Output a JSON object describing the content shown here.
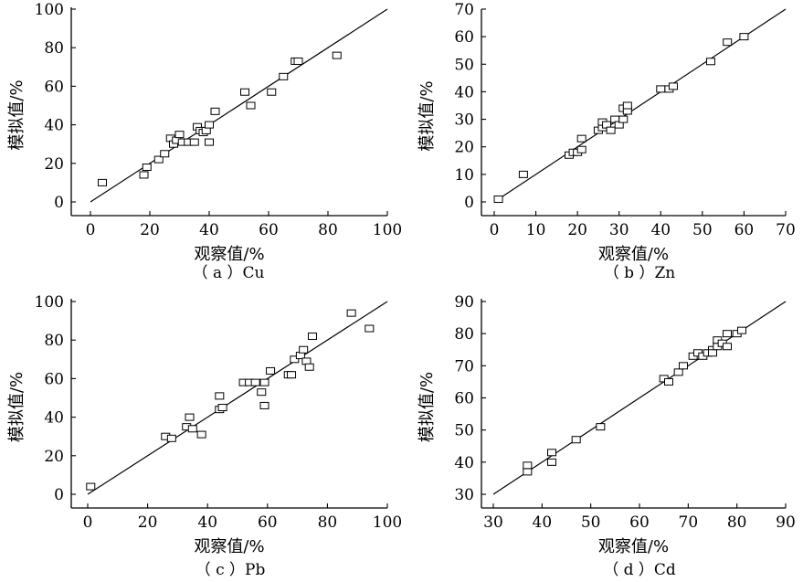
{
  "chart_data": [
    {
      "type": "scatter",
      "caption": "（ a ）Cu",
      "xlabel": "观察值/%",
      "ylabel": "模拟值/%",
      "xlim": [
        0,
        100
      ],
      "ylim": [
        0,
        100
      ],
      "xticks": [
        "0",
        "20",
        "40",
        "60",
        "80",
        "100"
      ],
      "yticks": [
        "0",
        "20",
        "40",
        "60",
        "80",
        "100"
      ],
      "fit_line": [
        [
          0,
          0
        ],
        [
          100,
          100
        ]
      ],
      "points": [
        [
          4,
          10
        ],
        [
          18,
          14
        ],
        [
          19,
          18
        ],
        [
          23,
          22
        ],
        [
          25,
          25
        ],
        [
          27,
          33
        ],
        [
          28,
          30
        ],
        [
          29,
          32
        ],
        [
          30,
          35
        ],
        [
          31,
          31
        ],
        [
          33,
          31
        ],
        [
          35,
          31
        ],
        [
          36,
          39
        ],
        [
          37,
          37
        ],
        [
          38,
          36
        ],
        [
          39,
          37
        ],
        [
          40,
          40
        ],
        [
          40,
          31
        ],
        [
          42,
          47
        ],
        [
          52,
          57
        ],
        [
          54,
          50
        ],
        [
          61,
          57
        ],
        [
          65,
          65
        ],
        [
          69,
          73
        ],
        [
          70,
          73
        ],
        [
          83,
          76
        ]
      ]
    },
    {
      "type": "scatter",
      "caption": "（ b ）Zn",
      "xlabel": "观察值/%",
      "ylabel": "模拟值/%",
      "xlim": [
        0,
        70
      ],
      "ylim": [
        0,
        70
      ],
      "xticks": [
        "0",
        "10",
        "20",
        "30",
        "40",
        "50",
        "60",
        "70"
      ],
      "yticks": [
        "0",
        "10",
        "20",
        "30",
        "40",
        "50",
        "60",
        "70"
      ],
      "fit_line": [
        [
          0,
          0
        ],
        [
          70,
          70
        ]
      ],
      "points": [
        [
          1,
          1
        ],
        [
          7,
          10
        ],
        [
          18,
          17
        ],
        [
          19,
          18
        ],
        [
          20,
          18
        ],
        [
          21,
          19
        ],
        [
          21,
          23
        ],
        [
          25,
          26
        ],
        [
          26,
          27
        ],
        [
          26,
          29
        ],
        [
          27,
          28
        ],
        [
          28,
          26
        ],
        [
          29,
          30
        ],
        [
          30,
          28
        ],
        [
          31,
          30
        ],
        [
          31,
          34
        ],
        [
          32,
          33
        ],
        [
          32,
          35
        ],
        [
          40,
          41
        ],
        [
          42,
          41
        ],
        [
          43,
          42
        ],
        [
          52,
          51
        ],
        [
          56,
          58
        ],
        [
          60,
          60
        ]
      ]
    },
    {
      "type": "scatter",
      "caption": "（ c ）Pb",
      "xlabel": "观察值/%",
      "ylabel": "模拟值/%",
      "xlim": [
        0,
        100
      ],
      "ylim": [
        0,
        100
      ],
      "xticks": [
        "0",
        "20",
        "40",
        "60",
        "80",
        "100"
      ],
      "yticks": [
        "0",
        "20",
        "40",
        "60",
        "80",
        "100"
      ],
      "fit_line": [
        [
          0,
          0
        ],
        [
          100,
          100
        ]
      ],
      "points": [
        [
          1,
          4
        ],
        [
          26,
          30
        ],
        [
          28,
          29
        ],
        [
          33,
          35
        ],
        [
          34,
          40
        ],
        [
          35,
          34
        ],
        [
          38,
          31
        ],
        [
          44,
          51
        ],
        [
          44,
          44
        ],
        [
          45,
          45
        ],
        [
          52,
          58
        ],
        [
          54,
          58
        ],
        [
          56,
          58
        ],
        [
          58,
          53
        ],
        [
          59,
          58
        ],
        [
          59,
          46
        ],
        [
          61,
          64
        ],
        [
          67,
          62
        ],
        [
          68,
          62
        ],
        [
          69,
          70
        ],
        [
          71,
          72
        ],
        [
          72,
          75
        ],
        [
          73,
          69
        ],
        [
          74,
          66
        ],
        [
          75,
          82
        ],
        [
          88,
          94
        ],
        [
          94,
          86
        ]
      ]
    },
    {
      "type": "scatter",
      "caption": "（ d ）Cd",
      "xlabel": "观察值/%",
      "ylabel": "模拟值/%",
      "xlim": [
        30,
        90
      ],
      "ylim": [
        30,
        90
      ],
      "xticks": [
        "30",
        "40",
        "50",
        "60",
        "70",
        "80",
        "90"
      ],
      "yticks": [
        "30",
        "40",
        "50",
        "60",
        "70",
        "80",
        "90"
      ],
      "fit_line": [
        [
          30,
          30
        ],
        [
          90,
          90
        ]
      ],
      "points": [
        [
          37,
          37
        ],
        [
          37,
          39
        ],
        [
          42,
          40
        ],
        [
          42,
          43
        ],
        [
          47,
          47
        ],
        [
          52,
          51
        ],
        [
          65,
          66
        ],
        [
          66,
          65
        ],
        [
          68,
          68
        ],
        [
          69,
          70
        ],
        [
          71,
          73
        ],
        [
          72,
          74
        ],
        [
          73,
          73
        ],
        [
          74,
          74
        ],
        [
          75,
          75
        ],
        [
          75,
          74
        ],
        [
          76,
          76
        ],
        [
          76,
          78
        ],
        [
          77,
          77
        ],
        [
          78,
          76
        ],
        [
          78,
          80
        ],
        [
          80,
          80
        ],
        [
          81,
          81
        ]
      ]
    }
  ]
}
